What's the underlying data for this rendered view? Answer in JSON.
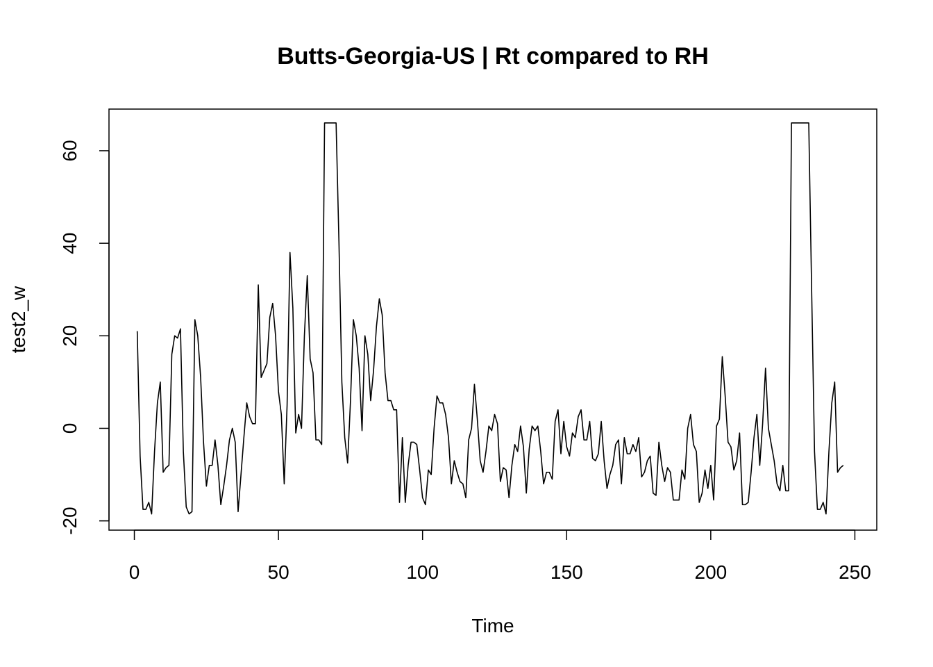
{
  "chart_data": {
    "type": "line",
    "title": "Butts-Georgia-US | Rt compared to RH",
    "xlabel": "Time",
    "ylabel": "test2_w",
    "xlim": [
      -8.8,
      257.6
    ],
    "ylim": [
      -22,
      69
    ],
    "x_ticks": [
      0,
      50,
      100,
      150,
      200,
      250
    ],
    "y_ticks": [
      -20,
      0,
      20,
      40,
      60
    ],
    "grid": false,
    "legend": "none",
    "line_color": "#000000",
    "series": [
      {
        "values": [
          21,
          -6,
          -17.5,
          -17.5,
          -16,
          -18.5,
          -5,
          5.5,
          10,
          -9.5,
          -8.5,
          -8,
          16,
          20,
          19.5,
          21.5,
          -5,
          -17,
          -18.5,
          -18,
          23.5,
          20,
          11,
          -3,
          -12.5,
          -8,
          -8,
          -2.5,
          -8,
          -16.5,
          -12.5,
          -8,
          -2.5,
          0,
          -3,
          -18,
          -10,
          -2,
          5.5,
          2.5,
          1,
          1,
          31,
          11,
          12.5,
          14,
          24,
          27,
          20,
          8,
          3,
          -12,
          5,
          38,
          26,
          -1,
          3,
          0,
          20,
          33,
          15,
          12,
          -2.5,
          -2.5,
          -3.5,
          66,
          66,
          66,
          66,
          66,
          40,
          10,
          -2,
          -7.5,
          6,
          23.5,
          20,
          13,
          -0.5,
          20,
          16,
          6,
          12.5,
          22,
          28,
          24.5,
          12,
          6,
          6,
          4,
          4,
          -16,
          -2,
          -16,
          -8,
          -3,
          -3,
          -3.5,
          -9,
          -15,
          -16.5,
          -9,
          -10,
          0,
          7,
          5.5,
          5.5,
          3,
          -2,
          -12,
          -7,
          -9.5,
          -11.5,
          -12,
          -15,
          -2.5,
          0,
          9.5,
          2,
          -7,
          -9.5,
          -5,
          0.5,
          -0.5,
          3,
          1,
          -11.5,
          -8.5,
          -9,
          -15,
          -8,
          -3.5,
          -5,
          0.5,
          -4,
          -14,
          -4.5,
          0.5,
          -0.5,
          0.5,
          -5,
          -12,
          -9.5,
          -9.5,
          -11,
          1.5,
          4,
          -5.5,
          1.5,
          -4,
          -6,
          -1,
          -2,
          2.5,
          4,
          -2.5,
          -2.5,
          1.5,
          -6.5,
          -7,
          -5.5,
          1.5,
          -7,
          -13,
          -10,
          -8,
          -3.5,
          -2.5,
          -12,
          -2,
          -5.5,
          -5.5,
          -3.5,
          -5,
          -2,
          -10.5,
          -9.5,
          -7,
          -6,
          -14,
          -14.5,
          -3,
          -8,
          -11.5,
          -8.5,
          -9.5,
          -15.5,
          -15.5,
          -15.5,
          -9,
          -11,
          0,
          3,
          -3.5,
          -5,
          -16,
          -14,
          -9,
          -13,
          -8,
          -15.5,
          0.5,
          2,
          15.5,
          7,
          -3,
          -4,
          -9,
          -7,
          -1,
          -16.5,
          -16.5,
          -16,
          -9.5,
          -2,
          3,
          -8,
          1,
          13,
          0,
          -3.5,
          -7,
          -12,
          -13.5,
          -8,
          -13.5,
          -13.5,
          66,
          66,
          66,
          66,
          66,
          66,
          66,
          30,
          -5,
          -17.5,
          -17.5,
          -16,
          -18.5,
          -5,
          5.5,
          10,
          -9.5,
          -8.5,
          -8
        ]
      }
    ]
  }
}
